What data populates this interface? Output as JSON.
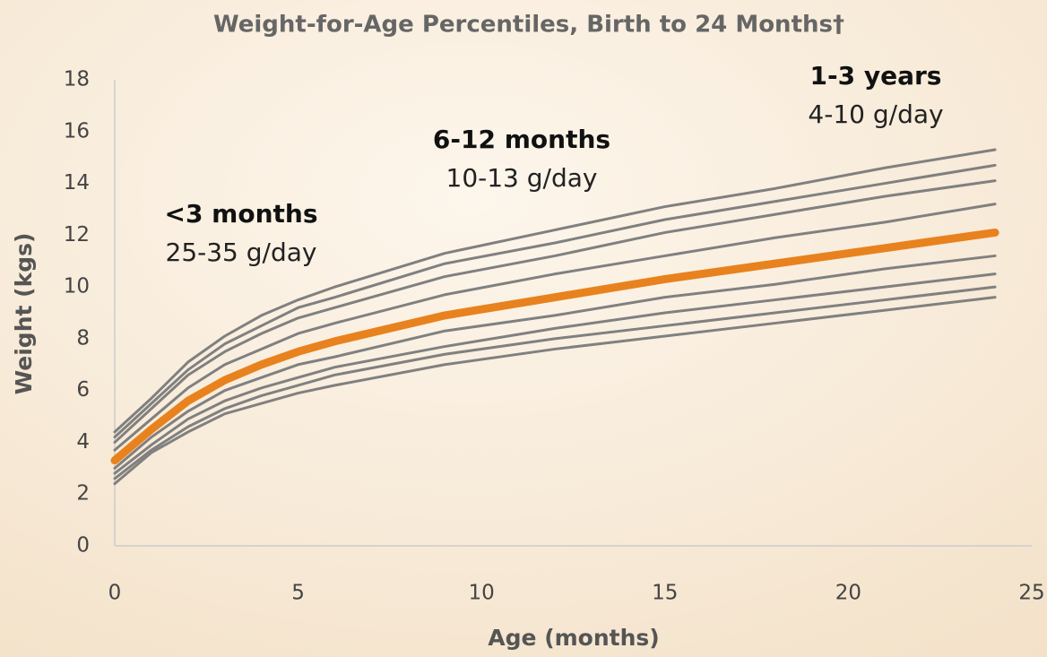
{
  "chart_data": {
    "type": "line",
    "title": "Weight-for-Age Percentiles, Birth to 24 Months†",
    "xlabel": "Age (months)",
    "ylabel": "Weight (kgs)",
    "x": [
      0,
      1,
      2,
      3,
      4,
      5,
      6,
      9,
      12,
      15,
      18,
      21,
      24
    ],
    "series": [
      {
        "color": "#808080",
        "values": [
          4.4,
          5.7,
          7.1,
          8.1,
          8.9,
          9.5,
          10.0,
          11.3,
          12.2,
          13.1,
          13.8,
          14.6,
          15.3
        ]
      },
      {
        "color": "#808080",
        "values": [
          4.2,
          5.5,
          6.8,
          7.8,
          8.5,
          9.2,
          9.6,
          10.9,
          11.7,
          12.6,
          13.3,
          14.0,
          14.7
        ]
      },
      {
        "color": "#808080",
        "values": [
          4.0,
          5.3,
          6.6,
          7.5,
          8.2,
          8.8,
          9.2,
          10.4,
          11.2,
          12.1,
          12.8,
          13.5,
          14.1
        ]
      },
      {
        "color": "#808080",
        "values": [
          3.7,
          4.9,
          6.1,
          7.0,
          7.6,
          8.2,
          8.6,
          9.7,
          10.5,
          11.2,
          11.9,
          12.5,
          13.2
        ]
      },
      {
        "color": "#808080",
        "values": [
          3.0,
          4.2,
          5.2,
          6.0,
          6.5,
          7.0,
          7.3,
          8.3,
          8.9,
          9.6,
          10.1,
          10.7,
          11.2
        ]
      },
      {
        "color": "#808080",
        "values": [
          2.8,
          3.9,
          4.9,
          5.6,
          6.1,
          6.5,
          6.9,
          7.7,
          8.4,
          9.0,
          9.5,
          10.0,
          10.5
        ]
      },
      {
        "color": "#808080",
        "values": [
          2.6,
          3.7,
          4.6,
          5.3,
          5.8,
          6.2,
          6.6,
          7.4,
          8.0,
          8.5,
          9.0,
          9.5,
          10.0
        ]
      },
      {
        "color": "#808080",
        "values": [
          2.4,
          3.6,
          4.4,
          5.1,
          5.5,
          5.9,
          6.2,
          7.0,
          7.6,
          8.1,
          8.6,
          9.1,
          9.6
        ]
      },
      {
        "color": "#e8821e",
        "values": [
          3.3,
          4.5,
          5.6,
          6.4,
          7.0,
          7.5,
          7.9,
          8.9,
          9.6,
          10.3,
          10.9,
          11.5,
          12.1
        ]
      }
    ],
    "xlim": [
      0,
      25
    ],
    "xticks": [
      0,
      5,
      10,
      15,
      20,
      25
    ],
    "ylim": [
      0,
      18
    ],
    "yticks": [
      0,
      2,
      4,
      6,
      8,
      10,
      12,
      14,
      16,
      18
    ],
    "grid": false,
    "annotations": [
      {
        "heading": "<3 months",
        "text": "25-35 g/day"
      },
      {
        "heading": "6-12 months",
        "text": "10-13 g/day"
      },
      {
        "heading": "1-3 years",
        "text": "4-10 g/day"
      }
    ]
  }
}
